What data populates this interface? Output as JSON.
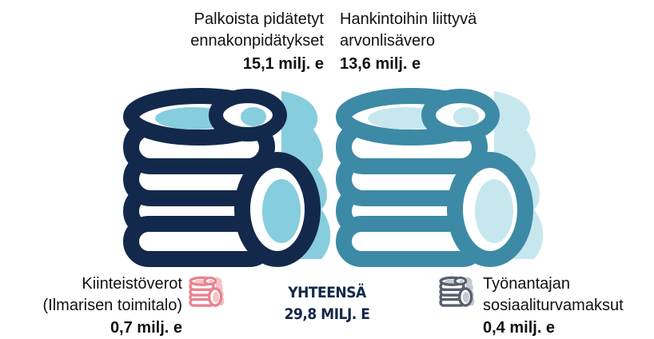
{
  "items": [
    {
      "label": [
        "Palkoista pidätetyt",
        "ennakonpidätykset"
      ],
      "value": "15,1 milj. e"
    },
    {
      "label": [
        "Hankintoihin liittyvä",
        "arvonlisävero"
      ],
      "value": "13,6 milj. e"
    },
    {
      "label": [
        "Kiinteistöverot",
        "(Ilmarisen toimitalo)"
      ],
      "value": "0,7 milj. e"
    },
    {
      "label": [
        "Työnantajan",
        "sosiaaliturvamaksut"
      ],
      "value": "0,4 milj. e"
    }
  ],
  "total": {
    "label": "YHTEENSÄ",
    "value": "29,8 MILJ. E"
  }
}
